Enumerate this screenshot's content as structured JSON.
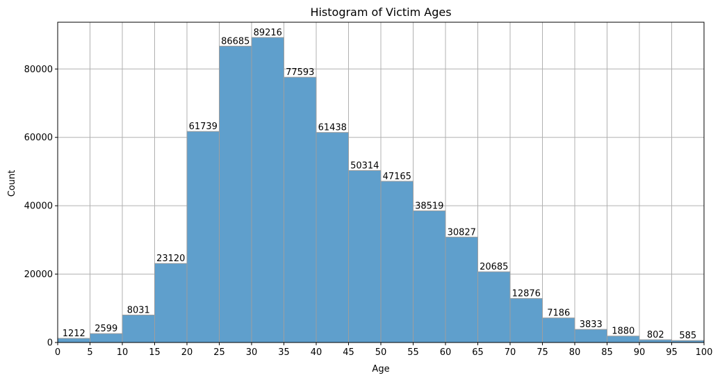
{
  "chart_data": {
    "type": "bar",
    "title": "Histogram of Victim Ages",
    "xlabel": "Age",
    "ylabel": "Count",
    "bin_edges": [
      0,
      5,
      10,
      15,
      20,
      25,
      30,
      35,
      40,
      45,
      50,
      55,
      60,
      65,
      70,
      75,
      80,
      85,
      90,
      95,
      100
    ],
    "values": [
      1212,
      2599,
      8031,
      23120,
      61739,
      86685,
      89216,
      77593,
      61438,
      50314,
      47165,
      38519,
      30827,
      20685,
      12876,
      7186,
      3833,
      1880,
      802,
      585
    ],
    "value_labels": [
      "1212",
      "2599",
      "8031",
      "23120",
      "61739",
      "86685",
      "89216",
      "77593",
      "61438",
      "50314",
      "47165",
      "38519",
      "30827",
      "20685",
      "12876",
      "7186",
      "3833",
      "1880",
      "802",
      "585"
    ],
    "xticks": [
      "0",
      "5",
      "10",
      "15",
      "20",
      "25",
      "30",
      "35",
      "40",
      "45",
      "50",
      "55",
      "60",
      "65",
      "70",
      "75",
      "80",
      "85",
      "90",
      "95",
      "100"
    ],
    "yticks": [
      0,
      20000,
      40000,
      60000,
      80000
    ],
    "ytick_labels": [
      "0",
      "20000",
      "40000",
      "60000",
      "80000"
    ],
    "xlim": [
      0,
      100
    ],
    "ylim": [
      0,
      93677
    ],
    "grid": true,
    "bar_color": "#5f9fcc",
    "edge_color": "#9e9e9e"
  }
}
